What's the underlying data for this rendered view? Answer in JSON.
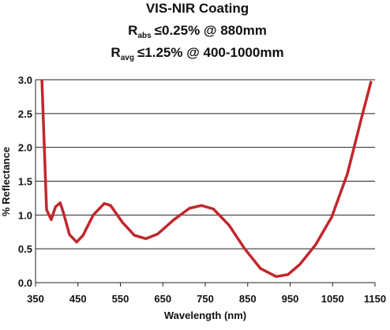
{
  "chart_data": {
    "type": "line",
    "title": "VIS-NIR Coating",
    "subtitle_lines": [
      {
        "symbol": "R",
        "subscript": "abs",
        "text": "≤0.25% @ 880mm"
      },
      {
        "symbol": "R",
        "subscript": "avg",
        "text": "≤1.25% @ 400-1000mm"
      }
    ],
    "x_label": "Wavelength (nm)",
    "y_label": "% Reflectance",
    "x": [
      365,
      376,
      387,
      397,
      408,
      415,
      430,
      447,
      462,
      486,
      512,
      527,
      555,
      583,
      610,
      638,
      676,
      713,
      741,
      769,
      806,
      843,
      880,
      917,
      945,
      973,
      1010,
      1048,
      1085,
      1118,
      1141
    ],
    "values": [
      3.0,
      1.08,
      0.93,
      1.12,
      1.18,
      1.05,
      0.71,
      0.6,
      0.7,
      1.0,
      1.17,
      1.14,
      0.89,
      0.7,
      0.65,
      0.72,
      0.93,
      1.1,
      1.14,
      1.09,
      0.85,
      0.5,
      0.21,
      0.09,
      0.12,
      0.27,
      0.56,
      0.97,
      1.61,
      2.43,
      2.98
    ],
    "color": "#c1272d",
    "xlim": [
      350,
      1150
    ],
    "xticks": [
      350,
      450,
      550,
      650,
      750,
      850,
      950,
      1050,
      1150
    ],
    "ylim": [
      0,
      3
    ],
    "yticks": [
      {
        "value": 0,
        "label": "0.0"
      },
      0.5,
      {
        "value": 1,
        "label": "1.0"
      },
      1.5,
      {
        "value": 2,
        "label": "2.0"
      },
      2.5,
      {
        "value": 3,
        "label": "3.0"
      }
    ],
    "grid": true
  }
}
